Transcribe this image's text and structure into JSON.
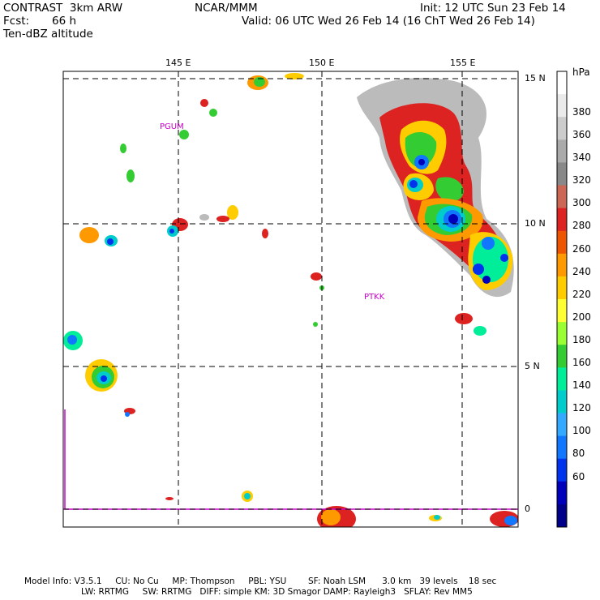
{
  "header": {
    "model": "CONTRAST  3km ARW",
    "center": "NCAR/MMM",
    "init": "Init: 12 UTC Sun 23 Feb 14",
    "fcst_label": "Fcst:",
    "fcst_value": "66 h",
    "valid": "Valid: 06 UTC Wed 26 Feb 14 (16 ChT Wed 26 Feb 14)",
    "field": "Ten-dBZ altitude"
  },
  "axes": {
    "lon_labels": [
      "145 E",
      "150 E",
      "155 E"
    ],
    "lat_labels": [
      "15 N",
      "10 N",
      "5 N",
      "0"
    ]
  },
  "stations": [
    "PGUM",
    "PTKK"
  ],
  "colorbar": {
    "unit": "hPa",
    "levels": [
      "380",
      "360",
      "340",
      "320",
      "300",
      "280",
      "260",
      "240",
      "220",
      "200",
      "180",
      "160",
      "140",
      "120",
      "100",
      "80",
      "60"
    ],
    "colors": [
      "#ffffff",
      "#ebebeb",
      "#cccccc",
      "#aaaaaa",
      "#888888",
      "#cc6655",
      "#dd2222",
      "#ee5500",
      "#ff9900",
      "#ffcc00",
      "#ffff33",
      "#99ff33",
      "#33cc33",
      "#00ee99",
      "#00cccc",
      "#33aaff",
      "#1177ff",
      "#0033ee",
      "#0000bb",
      "#000088"
    ]
  },
  "footer": {
    "line1": "Model Info: V3.5.1     CU: No Cu     MP: Thompson     PBL: YSU        SF: Noah LSM      3.0 km   39 levels    18 sec",
    "line2": "LW: RRTMG     SW: RRTMG   DIFF: simple KM: 3D Smagor DAMP: Rayleigh3   SFLAY: Rev MM5"
  }
}
